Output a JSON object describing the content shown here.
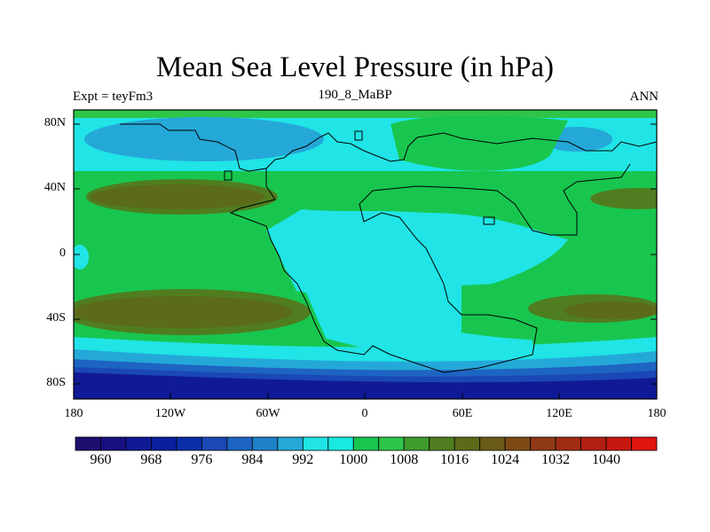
{
  "title": "Mean Sea Level Pressure (in hPa)",
  "subtitle_left": "Expt = teyFm3",
  "subtitle_center": "190_8_MaBP",
  "subtitle_right": "ANN",
  "lat_ticks": [
    "80N",
    "40N",
    "0",
    "40S",
    "80S"
  ],
  "lon_ticks": [
    "180",
    "120W",
    "60W",
    "0",
    "60E",
    "120E",
    "180"
  ],
  "colorbar": {
    "labels": [
      "960",
      "968",
      "976",
      "984",
      "992",
      "1000",
      "1008",
      "1016",
      "1024",
      "1032",
      "1040"
    ],
    "colors": [
      "#1e0f6e",
      "#180f80",
      "#111a96",
      "#0a1f9e",
      "#0a2ea8",
      "#1a48b5",
      "#1e64c2",
      "#1f82c8",
      "#24a8d8",
      "#20e4e6",
      "#18eadf",
      "#18c64f",
      "#2ec64a",
      "#3f9b2c",
      "#4f7d1f",
      "#5b6b1a",
      "#6a5a18",
      "#7d4a16",
      "#8f3815",
      "#a02c13",
      "#b11f12",
      "#c7180f",
      "#e01510"
    ]
  }
}
